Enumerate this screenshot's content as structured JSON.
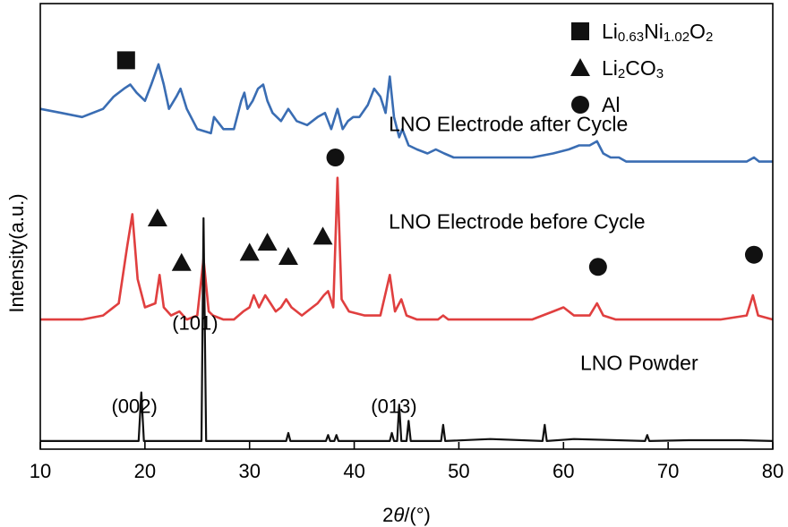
{
  "chart_data": {
    "type": "line",
    "xlabel": "2θ/(°)",
    "xlabel_parts": {
      "pre": "2",
      "italic": "θ",
      "post": "/(°)"
    },
    "ylabel": "Intensity(a.u.)",
    "xlim": [
      10,
      80
    ],
    "xticks": [
      10,
      20,
      30,
      40,
      50,
      60,
      70,
      80
    ],
    "ylim": [
      0,
      110
    ],
    "grid": false,
    "legend_position": "top-right",
    "legend": [
      {
        "marker": "square",
        "parts": [
          {
            "t": "Li",
            "sub": false
          },
          {
            "t": "0.63",
            "sub": true
          },
          {
            "t": "Ni",
            "sub": false
          },
          {
            "t": "1.02",
            "sub": true
          },
          {
            "t": "O",
            "sub": false
          },
          {
            "t": "2",
            "sub": true
          }
        ]
      },
      {
        "marker": "triangle",
        "parts": [
          {
            "t": "Li",
            "sub": false
          },
          {
            "t": "2",
            "sub": true
          },
          {
            "t": "CO",
            "sub": false
          },
          {
            "t": "3",
            "sub": true
          }
        ]
      },
      {
        "marker": "circle",
        "parts": [
          {
            "t": "Al",
            "sub": false
          }
        ]
      }
    ],
    "series": [
      {
        "name": "LNO Electrode after Cycle",
        "color": "#3a6db3",
        "baseline": 70,
        "x": [
          10,
          12,
          14,
          16,
          17,
          18,
          18.6,
          19.2,
          20,
          20.6,
          21.3,
          21.8,
          22.3,
          23,
          23.4,
          24,
          25,
          26.3,
          26.6,
          27.5,
          28.5,
          29.2,
          29.5,
          29.8,
          30.3,
          30.8,
          31.3,
          31.7,
          32.2,
          33,
          33.7,
          34.5,
          35.5,
          36.5,
          37.2,
          37.8,
          38.4,
          38.9,
          39.4,
          39.9,
          40.5,
          41.3,
          41.9,
          42.5,
          43,
          43.4,
          43.8,
          44.3,
          44.6,
          45.2,
          46,
          47,
          47.8,
          48.6,
          49.5,
          51,
          53,
          55,
          57,
          59,
          60.5,
          61.5,
          62.5,
          63.2,
          63.8,
          64.5,
          65.3,
          66,
          68,
          70,
          72,
          74,
          76,
          77.5,
          78.2,
          78.7,
          80
        ],
        "y": [
          84,
          83,
          82,
          84,
          87,
          89,
          90,
          88,
          86,
          90,
          95,
          90,
          84,
          87,
          89,
          84,
          79,
          78,
          82,
          79,
          79,
          86,
          88,
          84,
          86,
          89,
          90,
          86,
          83,
          81,
          84,
          81,
          80,
          82,
          83,
          79,
          84,
          79,
          81,
          82,
          82,
          85,
          89,
          87,
          83,
          92,
          82,
          77,
          79,
          75,
          74,
          73,
          74,
          73,
          72,
          72,
          72,
          72,
          72,
          73,
          74,
          75,
          75,
          76,
          73,
          72,
          72,
          71,
          71,
          71,
          71,
          71,
          71,
          71,
          72,
          71,
          71
        ]
      },
      {
        "name": "LNO Electrode before Cycle",
        "color": "#e03f3f",
        "baseline": 32,
        "x": [
          10,
          14,
          16,
          17.5,
          18.3,
          18.8,
          19.3,
          20,
          21,
          21.4,
          21.8,
          22.5,
          23.3,
          24,
          25,
          25.6,
          26.1,
          26.5,
          27.5,
          28.5,
          29.4,
          30,
          30.4,
          30.9,
          31.5,
          32,
          32.5,
          33,
          33.5,
          34,
          35,
          36,
          36.5,
          37.1,
          37.5,
          38,
          38.4,
          38.8,
          39.5,
          41,
          42.5,
          43.4,
          43.9,
          44.5,
          45,
          46,
          48,
          48.5,
          49,
          52,
          55,
          57,
          59,
          60,
          61,
          62.5,
          63.2,
          63.8,
          65,
          67,
          70,
          75,
          77.5,
          78.1,
          78.6,
          80
        ],
        "y": [
          32,
          32,
          33,
          36,
          50,
          58,
          42,
          35,
          36,
          43,
          35,
          33,
          34,
          32,
          33,
          47,
          34,
          33,
          32,
          32,
          34,
          35,
          38,
          35,
          38,
          36,
          34,
          35,
          37,
          35,
          33,
          35,
          36,
          38,
          39,
          35,
          67,
          37,
          34,
          33,
          33,
          43,
          34,
          37,
          33,
          32,
          32,
          33,
          32,
          32,
          32,
          32,
          34,
          35,
          33,
          33,
          36,
          33,
          32,
          32,
          32,
          32,
          33,
          38,
          33,
          32
        ]
      },
      {
        "name": "LNO Powder",
        "color": "#111111",
        "baseline": 2,
        "x": [
          10,
          19.4,
          19.65,
          19.9,
          25.4,
          25.6,
          25.85,
          33.5,
          33.7,
          33.9,
          37.3,
          37.5,
          37.7,
          38.1,
          38.3,
          38.5,
          43.4,
          43.6,
          43.8,
          44.1,
          44.3,
          44.5,
          45,
          45.2,
          45.4,
          48.3,
          48.5,
          48.7,
          53,
          58,
          58.2,
          58.4,
          61,
          67.8,
          68,
          68.2,
          72,
          77,
          80
        ],
        "y": [
          2,
          2,
          14,
          2,
          2,
          57,
          2,
          2,
          4,
          2,
          2,
          3.5,
          2,
          2,
          3.5,
          2,
          2,
          4,
          2,
          2,
          11,
          2,
          2,
          7,
          2,
          2,
          6,
          2,
          2.5,
          2,
          6,
          2,
          2.5,
          2,
          3.5,
          2,
          2.2,
          2.2,
          2
        ]
      }
    ],
    "markers": [
      {
        "shape": "square",
        "x": 18.2,
        "y": 96
      },
      {
        "shape": "triangle",
        "x": 21.2,
        "y": 57
      },
      {
        "shape": "triangle",
        "x": 23.5,
        "y": 46
      },
      {
        "shape": "triangle",
        "x": 30,
        "y": 48.5
      },
      {
        "shape": "triangle",
        "x": 31.7,
        "y": 51
      },
      {
        "shape": "triangle",
        "x": 33.7,
        "y": 47.5
      },
      {
        "shape": "triangle",
        "x": 37,
        "y": 52.5
      },
      {
        "shape": "circle",
        "x": 38.2,
        "y": 72
      },
      {
        "shape": "circle",
        "x": 63.3,
        "y": 45
      },
      {
        "shape": "circle",
        "x": 78.2,
        "y": 48
      }
    ],
    "series_labels": [
      {
        "text": "LNO Electrode after Cycle",
        "x": 43.3,
        "y": 78.5
      },
      {
        "text": "LNO Electrode before Cycle",
        "x": 43.3,
        "y": 54.5
      },
      {
        "text": "LNO Powder",
        "x": 61.6,
        "y": 19.5
      }
    ],
    "peak_labels": [
      {
        "text": "(002)",
        "x": 16.8,
        "y": 9
      },
      {
        "text": "(101)",
        "x": 22.6,
        "y": 29.5
      },
      {
        "text": "(013)",
        "x": 41.6,
        "y": 9
      }
    ]
  }
}
